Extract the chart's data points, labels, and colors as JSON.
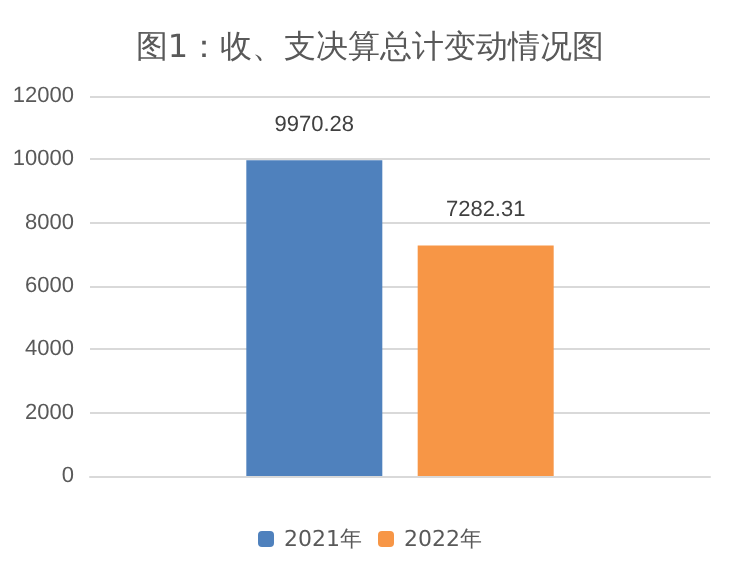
{
  "chart_data": {
    "type": "bar",
    "title": "图1：收、支决算总计变动情况图",
    "categories": [
      null
    ],
    "series": [
      {
        "name": "2021年",
        "color": "#4f81bd",
        "values": [
          9970.28
        ]
      },
      {
        "name": "2022年",
        "color": "#f79646",
        "values": [
          7282.31
        ]
      }
    ],
    "ylim": [
      0,
      12000
    ],
    "yticks": [
      0,
      2000,
      4000,
      6000,
      8000,
      10000,
      12000
    ],
    "grid": "y",
    "legend": "bottom",
    "data_labels": true
  }
}
